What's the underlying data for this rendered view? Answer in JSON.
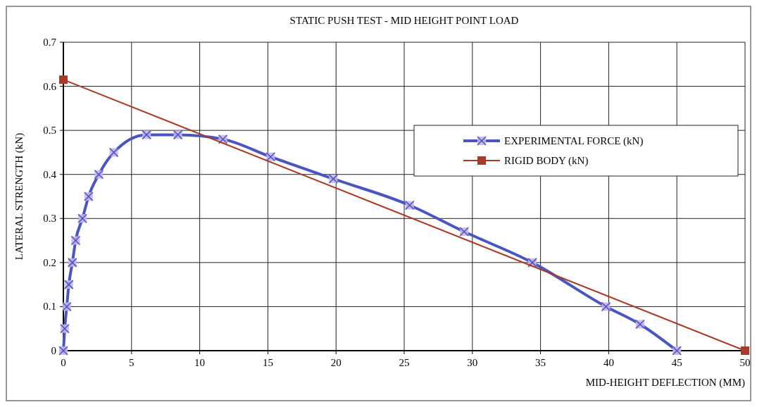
{
  "chart_data": {
    "type": "line",
    "title": "STATIC PUSH TEST -  MID HEIGHT POINT LOAD",
    "xlabel": "MID-HEIGHT DEFLECTION (MM)",
    "ylabel": "LATERAL STRENGTH (kN)",
    "xlim": [
      0,
      50
    ],
    "xticks": [
      0,
      5,
      10,
      15,
      20,
      25,
      30,
      35,
      40,
      45,
      50
    ],
    "ylim": [
      0,
      0.7
    ],
    "yticks": [
      0,
      0.1,
      0.2,
      0.3,
      0.4,
      0.5,
      0.6,
      0.7
    ],
    "grid": true,
    "legend": "right",
    "series": [
      {
        "name": "EXPERIMENTAL FORCE  (kN)",
        "color": "#4a55c0",
        "marker": "cross",
        "x": [
          0,
          0.1,
          0.25,
          0.4,
          0.66,
          0.9,
          1.4,
          1.85,
          2.6,
          3.7,
          6.1,
          8.4,
          11.7,
          15.2,
          19.8,
          25.4,
          29.4,
          34.4,
          39.8,
          42.3,
          45
        ],
        "values": [
          0,
          0.05,
          0.1,
          0.15,
          0.2,
          0.25,
          0.3,
          0.35,
          0.4,
          0.45,
          0.49,
          0.49,
          0.48,
          0.44,
          0.39,
          0.33,
          0.27,
          0.2,
          0.1,
          0.06,
          0
        ]
      },
      {
        "name": "RIGID BODY  (kN)",
        "color": "#a83a2a",
        "marker": "square",
        "x": [
          0,
          50
        ],
        "values": [
          0.615,
          0
        ]
      }
    ]
  }
}
